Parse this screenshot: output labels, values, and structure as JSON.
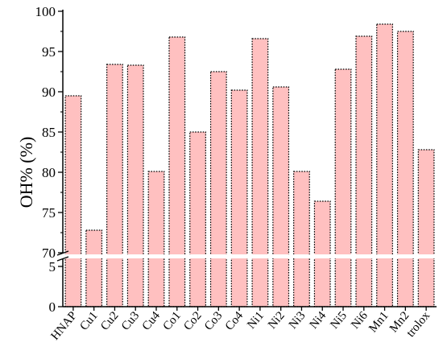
{
  "chart_data": {
    "type": "bar",
    "title": "",
    "xlabel": "",
    "ylabel": "OH% (%)",
    "categories": [
      "HNAP",
      "Cu1",
      "Cu2",
      "Cu3",
      "Cu4",
      "Co1",
      "Co2",
      "Co3",
      "Co4",
      "Ni1",
      "Ni2",
      "Ni3",
      "Ni4",
      "Ni5",
      "Ni6",
      "Mn1",
      "Mn2",
      "trolox"
    ],
    "values": [
      89.5,
      72.8,
      93.4,
      93.3,
      80.1,
      96.8,
      85.0,
      92.5,
      90.2,
      96.6,
      90.6,
      80.1,
      76.4,
      92.8,
      96.9,
      98.4,
      97.5,
      82.8
    ],
    "axis_break": {
      "lower_range": [
        0,
        6
      ],
      "upper_range": [
        70,
        100
      ]
    },
    "lower_ticks": [
      0,
      5
    ],
    "upper_ticks": [
      70,
      75,
      80,
      85,
      90,
      95,
      100
    ],
    "grid": false,
    "colors": {
      "bar_fill": "#ffc0c0",
      "bar_stroke": "#000000"
    }
  }
}
